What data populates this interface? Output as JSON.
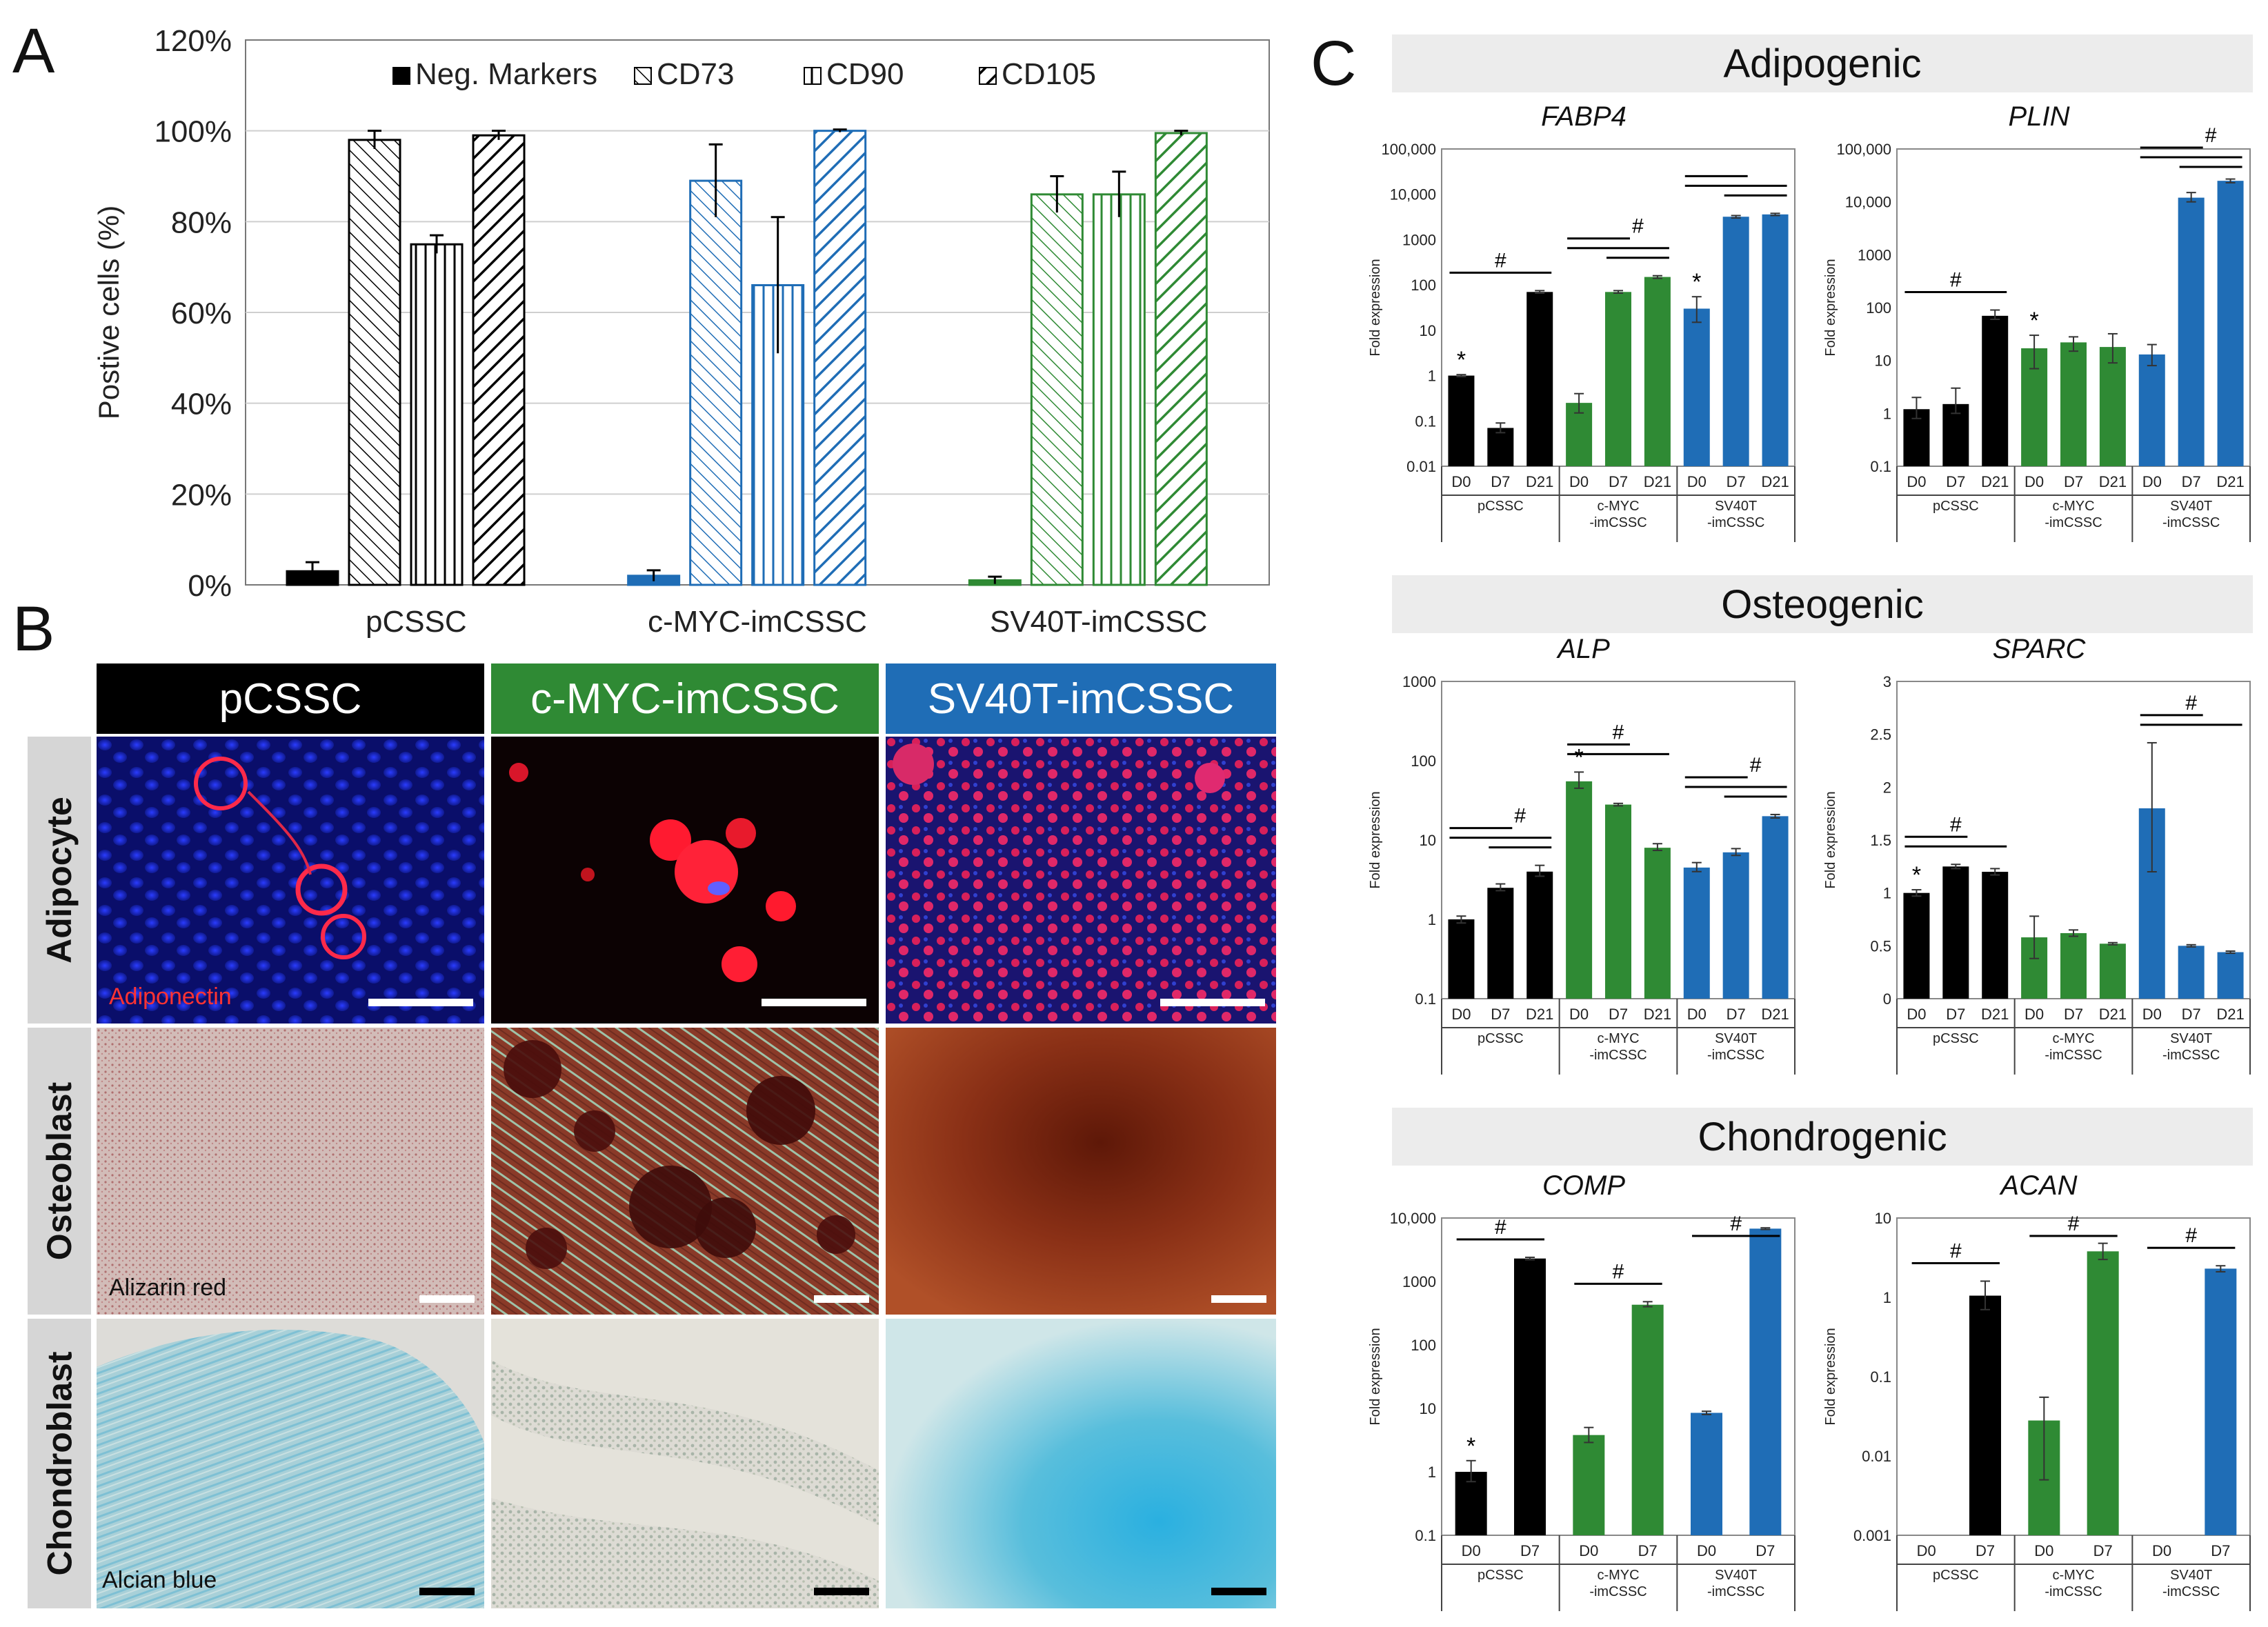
{
  "panels": {
    "a": "A",
    "b": "B",
    "c": "C"
  },
  "panel_a": {
    "ylabel": "Postive cells (%)",
    "legend": [
      "Neg. Markers",
      "CD73",
      "CD90",
      "CD105"
    ]
  },
  "panel_b": {
    "columns": [
      "pCSSC",
      "c-MYC-imCSSC",
      "SV40T-imCSSC"
    ],
    "column_colors": [
      "#000000",
      "#2f8a34",
      "#1f6db6"
    ],
    "rows": [
      "Adipocyte",
      "Osteoblast",
      "Chondroblast"
    ],
    "captions": {
      "adipocyte": "Adiponectin",
      "osteoblast": "Alizarin red",
      "chondroblast": "Alcian blue"
    }
  },
  "panel_c": {
    "sections": [
      "Adipogenic",
      "Osteogenic",
      "Chondrogenic"
    ],
    "ylabel": "Fold expression",
    "group_colors": [
      "#000000",
      "#2f8a34",
      "#1f6db6"
    ],
    "groups": [
      "pCSSC",
      "c-MYC\n-imCSSC",
      "SV40T\n-imCSSC"
    ],
    "marks": {
      "hash": "#",
      "star": "*"
    }
  },
  "chart_data": [
    {
      "type": "bar",
      "panel": "A",
      "categories": [
        "pCSSC",
        "c-MYC-imCSSC",
        "SV40T-imCSSC"
      ],
      "category_colors": [
        "#000000",
        "#1f6db6",
        "#2f8a34"
      ],
      "series": [
        {
          "name": "Neg. Markers",
          "values": [
            3,
            2,
            1
          ],
          "errors": [
            2,
            1.2,
            0.8
          ]
        },
        {
          "name": "CD73",
          "values": [
            98,
            89,
            86
          ],
          "errors": [
            2,
            8,
            4
          ]
        },
        {
          "name": "CD90",
          "values": [
            75,
            66,
            86
          ],
          "errors": [
            2,
            15,
            5
          ]
        },
        {
          "name": "CD105",
          "values": [
            99,
            100,
            99.5
          ],
          "errors": [
            1,
            0.3,
            0.5
          ]
        }
      ],
      "yticks": [
        "0%",
        "20%",
        "40%",
        "60%",
        "80%",
        "100%",
        "120%"
      ],
      "ylim": [
        0,
        120
      ],
      "ylabel": "Postive cells (%)",
      "grid": true,
      "legend": "top"
    },
    {
      "type": "bar",
      "panel": "C",
      "title": "FABP4",
      "log": true,
      "ylim": [
        0.01,
        100000
      ],
      "yticks": [
        "0.01",
        "0.1",
        "1",
        "10",
        "100",
        "1000",
        "10,000",
        "100,000"
      ],
      "days": [
        "D0",
        "D7",
        "D21"
      ],
      "groups": [
        "pCSSC",
        "c-MYC\n-imCSSC",
        "SV40T\n-imCSSC"
      ],
      "values": [
        [
          1,
          0.07,
          70
        ],
        [
          0.25,
          70,
          150
        ],
        [
          30,
          3200,
          3600
        ]
      ],
      "errors_hi": [
        [
          1.05,
          0.09,
          75
        ],
        [
          0.4,
          75,
          160
        ],
        [
          55,
          3400,
          3800
        ]
      ],
      "errors_lo": [
        [
          0.95,
          0.055,
          66
        ],
        [
          0.15,
          66,
          140
        ],
        [
          15,
          3000,
          3400
        ]
      ],
      "stars": [
        [
          0,
          0
        ],
        [
          2,
          0
        ]
      ],
      "brackets": [
        [
          0,
          [
            [
              0,
              2
            ]
          ]
        ],
        [
          1,
          [
            [
              0,
              1
            ],
            [
              0,
              2
            ],
            [
              1,
              2
            ]
          ]
        ],
        [
          2,
          [
            [
              0,
              1
            ],
            [
              0,
              2
            ],
            [
              1,
              2
            ]
          ]
        ]
      ],
      "hashes": [
        0,
        1
      ]
    },
    {
      "type": "bar",
      "panel": "C",
      "title": "PLIN",
      "log": true,
      "ylim": [
        0.1,
        100000
      ],
      "yticks": [
        "0.1",
        "1",
        "10",
        "100",
        "1000",
        "10,000",
        "100,000"
      ],
      "days": [
        "D0",
        "D7",
        "D21"
      ],
      "groups": [
        "pCSSC",
        "c-MYC\n-imCSSC",
        "SV40T\n-imCSSC"
      ],
      "values": [
        [
          1.2,
          1.5,
          70
        ],
        [
          17,
          22,
          18
        ],
        [
          13,
          12000,
          25000
        ]
      ],
      "errors_hi": [
        [
          2,
          3,
          90
        ],
        [
          30,
          28,
          32
        ],
        [
          20,
          15000,
          27000
        ]
      ],
      "errors_lo": [
        [
          0.8,
          1,
          60
        ],
        [
          7,
          15,
          9
        ],
        [
          8,
          10000,
          23000
        ]
      ],
      "stars": [
        [
          1,
          0
        ]
      ],
      "brackets": [
        [
          0,
          [
            [
              0,
              2
            ]
          ]
        ],
        [
          2,
          [
            [
              0,
              1
            ],
            [
              0,
              2
            ],
            [
              1,
              2
            ]
          ]
        ]
      ],
      "hashes": [
        0,
        2
      ]
    },
    {
      "type": "bar",
      "panel": "C",
      "title": "ALP",
      "log": true,
      "ylim": [
        0.1,
        1000
      ],
      "yticks": [
        "0.1",
        "1",
        "10",
        "100",
        "1000"
      ],
      "days": [
        "D0",
        "D7",
        "D21"
      ],
      "groups": [
        "pCSSC",
        "c-MYC\n-imCSSC",
        "SV40T\n-imCSSC"
      ],
      "values": [
        [
          1,
          2.5,
          4
        ],
        [
          55,
          28,
          8
        ],
        [
          4.5,
          7,
          20
        ]
      ],
      "errors_hi": [
        [
          1.1,
          2.8,
          4.8
        ],
        [
          72,
          29,
          9
        ],
        [
          5.2,
          7.8,
          21
        ]
      ],
      "errors_lo": [
        [
          0.9,
          2.3,
          3.5
        ],
        [
          45,
          27,
          7.4
        ],
        [
          4,
          6.4,
          19
        ]
      ],
      "stars": [
        [
          1,
          0
        ]
      ],
      "brackets": [
        [
          0,
          [
            [
              0,
              1
            ],
            [
              0,
              2
            ],
            [
              1,
              2
            ]
          ]
        ],
        [
          1,
          [
            [
              0,
              1
            ],
            [
              0,
              2
            ]
          ]
        ],
        [
          2,
          [
            [
              0,
              1
            ],
            [
              0,
              2
            ],
            [
              1,
              2
            ]
          ]
        ]
      ],
      "hashes": [
        0,
        1,
        2
      ]
    },
    {
      "type": "bar",
      "panel": "C",
      "title": "SPARC",
      "log": false,
      "ylim": [
        0,
        3
      ],
      "yticks": [
        "0",
        "0.5",
        "1",
        "1.5",
        "2",
        "2.5",
        "3"
      ],
      "days": [
        "D0",
        "D7",
        "D21"
      ],
      "groups": [
        "pCSSC",
        "c-MYC\n-imCSSC",
        "SV40T\n-imCSSC"
      ],
      "values": [
        [
          1,
          1.25,
          1.2
        ],
        [
          0.58,
          0.62,
          0.52
        ],
        [
          1.8,
          0.5,
          0.44
        ]
      ],
      "errors_hi": [
        [
          1.03,
          1.27,
          1.23
        ],
        [
          0.78,
          0.65,
          0.53
        ],
        [
          2.42,
          0.51,
          0.45
        ]
      ],
      "errors_lo": [
        [
          0.97,
          1.23,
          1.17
        ],
        [
          0.38,
          0.59,
          0.51
        ],
        [
          1.2,
          0.49,
          0.43
        ]
      ],
      "stars": [
        [
          0,
          0
        ]
      ],
      "brackets": [
        [
          0,
          [
            [
              0,
              1
            ],
            [
              0,
              2
            ]
          ]
        ],
        [
          2,
          [
            [
              0,
              1
            ],
            [
              0,
              2
            ]
          ]
        ]
      ],
      "hashes": [
        0,
        2
      ]
    },
    {
      "type": "bar",
      "panel": "C",
      "title": "COMP",
      "log": true,
      "ylim": [
        0.1,
        10000
      ],
      "yticks": [
        "0.1",
        "1",
        "10",
        "100",
        "1000",
        "10,000"
      ],
      "days": [
        "D0",
        "D7"
      ],
      "groups": [
        "pCSSC",
        "c-MYC\n-imCSSC",
        "SV40T\n-imCSSC"
      ],
      "values": [
        [
          1,
          2300
        ],
        [
          3.8,
          430
        ],
        [
          8.5,
          6800
        ]
      ],
      "errors_hi": [
        [
          1.5,
          2400
        ],
        [
          5,
          480
        ],
        [
          9,
          7000
        ]
      ],
      "errors_lo": [
        [
          0.7,
          2200
        ],
        [
          2.9,
          400
        ],
        [
          8,
          6600
        ]
      ],
      "stars": [
        [
          0,
          0
        ]
      ],
      "brackets": [
        [
          0,
          [
            [
              0,
              1
            ]
          ]
        ],
        [
          1,
          [
            [
              0,
              1
            ]
          ]
        ],
        [
          2,
          [
            [
              0,
              1
            ]
          ]
        ]
      ],
      "hashes": [
        0,
        1,
        2
      ]
    },
    {
      "type": "bar",
      "panel": "C",
      "title": "ACAN",
      "log": true,
      "ylim": [
        0.001,
        10
      ],
      "yticks": [
        "0.001",
        "0.01",
        "0.1",
        "1",
        "10"
      ],
      "days": [
        "D0",
        "D7"
      ],
      "groups": [
        "pCSSC",
        "c-MYC\n-imCSSC",
        "SV40T\n-imCSSC"
      ],
      "values": [
        [
          null,
          1.05
        ],
        [
          0.028,
          3.8
        ],
        [
          null,
          2.3
        ]
      ],
      "errors_hi": [
        [
          null,
          1.6
        ],
        [
          0.055,
          4.8
        ],
        [
          null,
          2.5
        ]
      ],
      "errors_lo": [
        [
          null,
          0.7
        ],
        [
          0.005,
          3
        ],
        [
          null,
          2.1
        ]
      ],
      "stars": [],
      "brackets": [
        [
          0,
          [
            [
              0,
              1
            ]
          ]
        ],
        [
          1,
          [
            [
              0,
              1
            ]
          ]
        ],
        [
          2,
          [
            [
              0,
              1
            ]
          ]
        ]
      ],
      "hashes": [
        0,
        1,
        2
      ]
    }
  ]
}
